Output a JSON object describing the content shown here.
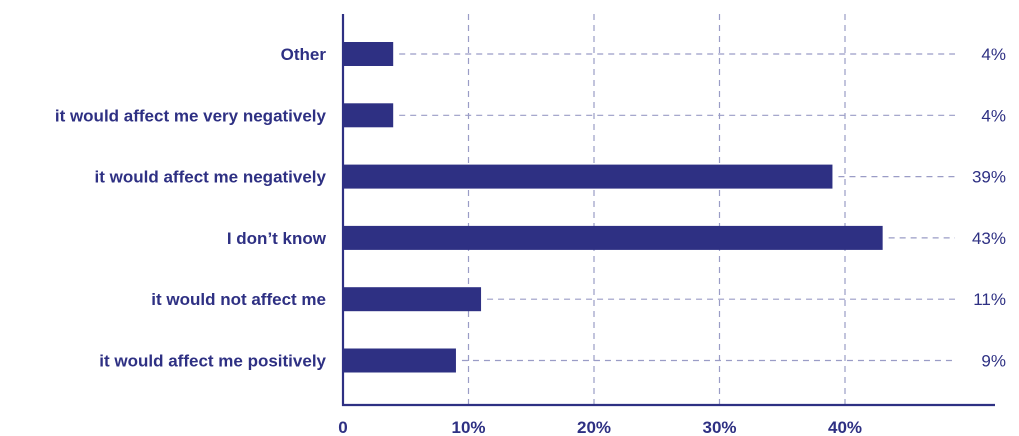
{
  "chart_data": {
    "type": "bar",
    "orientation": "horizontal",
    "categories": [
      "Other",
      "it would affect me very negatively",
      "it would affect me negatively",
      "I don’t know",
      "it would not affect me",
      "it would affect me positively"
    ],
    "values": [
      4,
      4,
      39,
      43,
      11,
      9
    ],
    "value_labels": [
      "4%",
      "4%",
      "39%",
      "43%",
      "11%",
      "9%"
    ],
    "x_ticks": [
      0,
      10,
      20,
      30,
      40
    ],
    "x_tick_labels": [
      "0",
      "10%",
      "20%",
      "30%",
      "40%"
    ],
    "xlim": [
      0,
      52
    ],
    "grid": "vertical dashed",
    "colors": {
      "bar": "#2e3083",
      "text": "#2e3083",
      "grid": "#9a9cc6",
      "axis": "#2e3083"
    }
  }
}
